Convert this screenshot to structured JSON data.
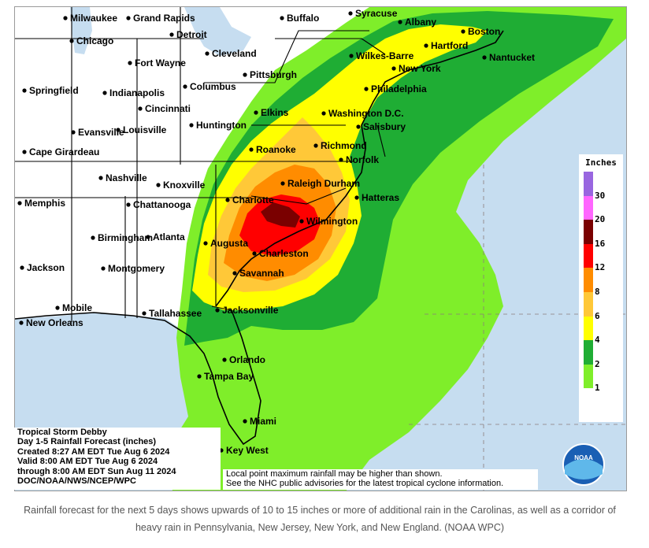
{
  "map": {
    "storm_name": "Tropical Storm Debby",
    "product": "Day 1-5 Rainfall Forecast (inches)",
    "created": "Created 8:27 AM EDT Tue Aug 6 2024",
    "valid": "Valid 8:00 AM EDT Tue Aug 6 2024",
    "through": "through 8:00 AM EDT Sun Aug 11 2024",
    "agency": "DOC/NOAA/NWS/NCEP/WPC",
    "disclaimer_line1": "Local point maximum rainfall may be higher than shown.",
    "disclaimer_line2": "See the NHC public advisories for the latest tropical cyclone information.",
    "logo_text": "NOAA",
    "colors": {
      "ocean": "#c6ddf0",
      "land": "#ffffff",
      "state_lines": "#000000"
    }
  },
  "legend": {
    "title": "Inches",
    "ticks": [
      "30",
      "20",
      "16",
      "12",
      "8",
      "6",
      "4",
      "2",
      "1"
    ],
    "colors": [
      "#9966e0",
      "#ff66ff",
      "#7a0000",
      "#ff0000",
      "#ff8c00",
      "#ffc838",
      "#ffff00",
      "#1fad34",
      "#7fee2a",
      "#ffffff"
    ]
  },
  "cities": [
    "Milwaukee",
    "Grand Rapids",
    "Buffalo",
    "Syracuse",
    "Albany",
    "Boston",
    "Chicago",
    "Detroit",
    "Hartford",
    "Nantucket",
    "Fort Wayne",
    "Cleveland",
    "Wilkes-Barre",
    "New York",
    "Springfield",
    "Indianapolis",
    "Columbus",
    "Pittsburgh",
    "Philadelphia",
    "Cincinnati",
    "Elkins",
    "Washington D.C.",
    "Huntington",
    "Salisbury",
    "Evansville",
    "Louisville",
    "Richmond",
    "Cape Girardeau",
    "Roanoke",
    "Norfolk",
    "Nashville",
    "Knoxville",
    "Raleigh Durham",
    "Memphis",
    "Chattanooga",
    "Charlotte",
    "Hatteras",
    "Wilmington",
    "Birmingham",
    "Atlanta",
    "Augusta",
    "Jackson",
    "Montgomery",
    "Charleston",
    "Savannah",
    "Mobile",
    "New Orleans",
    "Tallahassee",
    "Jacksonville",
    "Orlando",
    "Tampa Bay",
    "Miami",
    "Key West"
  ],
  "caption": "Rainfall forecast for the next 5 days shows upwards of 10 to 15 inches or more of additional rain in the Carolinas, as well as a corridor of heavy rain in Pennsylvania, New Jersey, New York, and New England. (NOAA WPC)"
}
